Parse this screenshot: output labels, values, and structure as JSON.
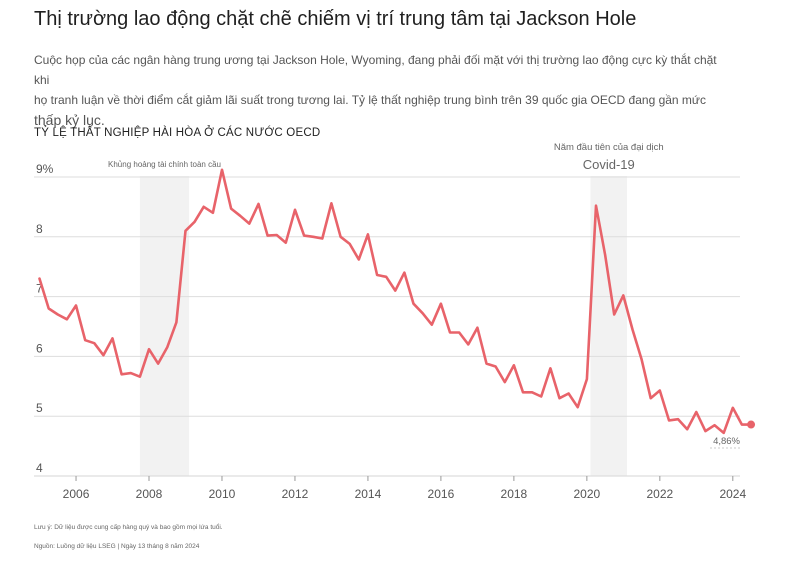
{
  "title": "Thị trường lao động chặt chẽ chiếm vị trí trung tâm tại Jackson Hole",
  "subtitle_line1": "Cuộc họp của các ngân hàng trung ương tại Jackson Hole, Wyoming, đang phải đối mặt với thị trường lao động cực kỳ thắt chặt khi",
  "subtitle_line2": "họ tranh luận về thời điểm cắt giảm lãi suất trong tương lai. Tỷ lệ thất nghiệp trung bình trên 39 quốc gia OECD đang gần mức",
  "subtitle_line3": "thấp kỷ lục.",
  "footnote": "Lưu ý: Dữ liệu được cung cấp hàng quý và bao gồm mọi lứa tuổi.",
  "source": "Nguồn: Luồng dữ liệu LSEG | Ngày 13 tháng 8 năm 2024",
  "colors": {
    "line": "#e8636a",
    "shade": "#f2f2f2",
    "grid": "#dddddd"
  },
  "chart_data": {
    "type": "line",
    "title": "TỶ LỆ THẤT NGHIỆP HÀI HÒA Ở CÁC NƯỚC OECD",
    "xlabel": "",
    "ylabel": "",
    "xlim": [
      2004.3,
      2024.8
    ],
    "ylim": [
      4,
      9.3
    ],
    "yticks": [
      4,
      5,
      6,
      7,
      8,
      9
    ],
    "ytick_labels": [
      "4",
      "5",
      "6",
      "7",
      "8",
      "9%"
    ],
    "xticks": [
      2006,
      2008,
      2010,
      2012,
      2014,
      2016,
      2018,
      2020,
      2022,
      2024
    ],
    "xtick_labels": [
      "2006",
      "2008",
      "2010",
      "2012",
      "2014",
      "2016",
      "2018",
      "2020",
      "2022",
      "2024"
    ],
    "grid": true,
    "x": [
      2005.0,
      2005.25,
      2005.5,
      2005.75,
      2006.0,
      2006.25,
      2006.5,
      2006.75,
      2007.0,
      2007.25,
      2007.5,
      2007.75,
      2008.0,
      2008.25,
      2008.5,
      2008.75,
      2009.0,
      2009.25,
      2009.5,
      2009.75,
      2010.0,
      2010.25,
      2010.5,
      2010.75,
      2011.0,
      2011.25,
      2011.5,
      2011.75,
      2012.0,
      2012.25,
      2012.5,
      2012.75,
      2013.0,
      2013.25,
      2013.5,
      2013.75,
      2014.0,
      2014.25,
      2014.5,
      2014.75,
      2015.0,
      2015.25,
      2015.5,
      2015.75,
      2016.0,
      2016.25,
      2016.5,
      2016.75,
      2017.0,
      2017.25,
      2017.5,
      2017.75,
      2018.0,
      2018.25,
      2018.5,
      2018.75,
      2019.0,
      2019.25,
      2019.5,
      2019.75,
      2020.0,
      2020.25,
      2020.5,
      2020.75,
      2021.0,
      2021.25,
      2021.5,
      2021.75,
      2022.0,
      2022.25,
      2022.5,
      2022.75,
      2023.0,
      2023.25,
      2023.5,
      2023.75,
      2024.0,
      2024.25,
      2024.5
    ],
    "values": [
      7.3,
      6.8,
      6.7,
      6.62,
      6.85,
      6.27,
      6.22,
      6.02,
      6.3,
      5.7,
      5.72,
      5.66,
      6.12,
      5.88,
      6.15,
      6.57,
      8.1,
      8.25,
      8.5,
      8.4,
      9.12,
      8.47,
      8.35,
      8.22,
      8.55,
      8.02,
      8.03,
      7.9,
      8.45,
      8.02,
      8.0,
      7.97,
      8.56,
      8.0,
      7.88,
      7.62,
      8.04,
      7.36,
      7.33,
      7.1,
      7.4,
      6.88,
      6.72,
      6.53,
      6.88,
      6.4,
      6.4,
      6.2,
      6.48,
      5.88,
      5.83,
      5.57,
      5.85,
      5.4,
      5.4,
      5.33,
      5.8,
      5.3,
      5.38,
      5.15,
      5.62,
      8.52,
      7.7,
      6.7,
      7.02,
      6.45,
      5.95,
      5.3,
      5.43,
      4.93,
      4.95,
      4.78,
      5.07,
      4.75,
      4.85,
      4.72,
      5.14,
      4.86,
      4.86
    ],
    "last_point_label": "4,86%",
    "shaded_periods": [
      {
        "start": 2007.75,
        "end": 2009.1,
        "label": "Khủng hoảng tài chính toàn cầu"
      },
      {
        "start": 2020.1,
        "end": 2021.1,
        "label_top": "Năm đầu tiên của đại dịch",
        "label_bottom": "Covid-19"
      }
    ]
  }
}
